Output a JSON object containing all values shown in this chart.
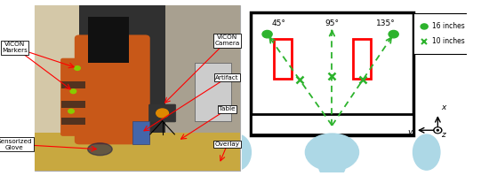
{
  "fig_width": 5.5,
  "fig_height": 1.99,
  "dpi": 100,
  "background_color": "#ffffff",
  "left_panel": {
    "text_fontsize": 5.2,
    "arrow_color": "red"
  },
  "right_panel": {
    "green": "#2db32d",
    "red_rect": "red",
    "angle_labels": [
      "45°",
      "95°",
      "135°"
    ],
    "legend_dot_label": "16 inches",
    "legend_x_label": "10 inches",
    "legend_fontsize": 5.5,
    "body_color": "#add8e6",
    "body_edge": "#7a9fbf",
    "table_bar_color": "white",
    "table_bar_edge": "black"
  }
}
